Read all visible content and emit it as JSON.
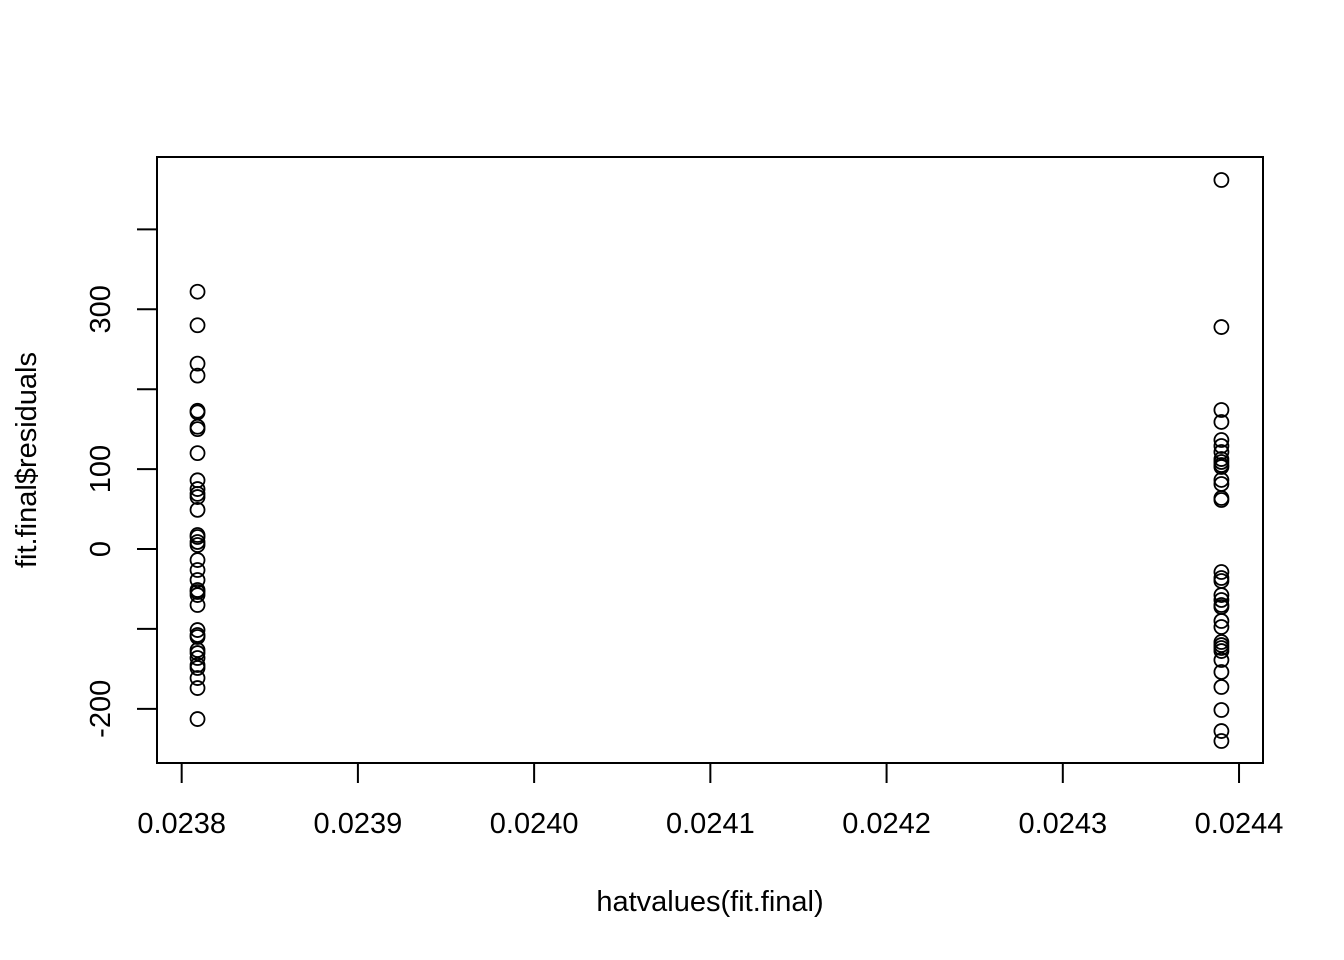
{
  "chart_data": {
    "type": "scatter",
    "x_label": "hatvalues(fit.final)",
    "y_label": "fit.final$residuals",
    "color": "#000000",
    "x": [
      0.023809,
      0.023809,
      0.023809,
      0.023809,
      0.023809,
      0.023809,
      0.023809,
      0.023809,
      0.023809,
      0.023809,
      0.023809,
      0.023809,
      0.023809,
      0.023809,
      0.023809,
      0.023809,
      0.023809,
      0.023809,
      0.023809,
      0.023809,
      0.023809,
      0.023809,
      0.023809,
      0.023809,
      0.023809,
      0.023809,
      0.023809,
      0.023809,
      0.023809,
      0.023809,
      0.023809,
      0.023809,
      0.023809,
      0.023809,
      0.023809,
      0.023809,
      0.02439,
      0.02439,
      0.02439,
      0.02439,
      0.02439,
      0.02439,
      0.02439,
      0.02439,
      0.02439,
      0.02439,
      0.02439,
      0.02439,
      0.02439,
      0.02439,
      0.02439,
      0.02439,
      0.02439,
      0.02439,
      0.02439,
      0.02439,
      0.02439,
      0.02439,
      0.02439,
      0.02439,
      0.02439,
      0.02439,
      0.02439,
      0.02439,
      0.02439,
      0.02439,
      0.02439,
      0.02439,
      0.02439,
      0.02439
    ],
    "values": [
      322,
      280,
      232,
      217,
      173,
      171,
      153,
      150,
      120,
      86,
      75,
      69,
      65,
      49,
      17.5,
      15,
      8.8,
      5,
      -13.8,
      -26.3,
      -38.8,
      -51.3,
      -53.8,
      -57.6,
      -70.1,
      -101.4,
      -107.6,
      -110.1,
      -126.4,
      -130.2,
      -136.4,
      -145.2,
      -148.9,
      -161.5,
      -174,
      -212.8,
      461.8,
      277.8,
      174,
      159,
      136.4,
      128.9,
      121.4,
      112.6,
      108.9,
      105.1,
      102.6,
      86.4,
      81.4,
      63.8,
      61.3,
      -28.8,
      -36.3,
      -40,
      -57.6,
      -63.8,
      -70.1,
      -72.6,
      -90.1,
      -97.6,
      -116.4,
      -120.2,
      -123.9,
      -127.7,
      -138.9,
      -153.9,
      -172.7,
      -201.5,
      -227.8,
      -240.3
    ],
    "xlim": [
      0.023786,
      0.0244136
    ],
    "ylim": [
      -267.8,
      490.6
    ],
    "xticks": [
      0.0238,
      0.0239,
      {
        "value": 0.024,
        "label": "0.0240"
      },
      0.0241,
      0.0242,
      0.0243,
      0.0244
    ],
    "yticks": [
      {
        "value": -200,
        "label": "-200"
      },
      {
        "value": -100,
        "label": null
      },
      {
        "value": 0,
        "label": "0"
      },
      {
        "value": 100,
        "label": "100"
      },
      {
        "value": 200,
        "label": null
      },
      {
        "value": 300,
        "label": "300"
      },
      {
        "value": 400,
        "label": null
      }
    ]
  }
}
